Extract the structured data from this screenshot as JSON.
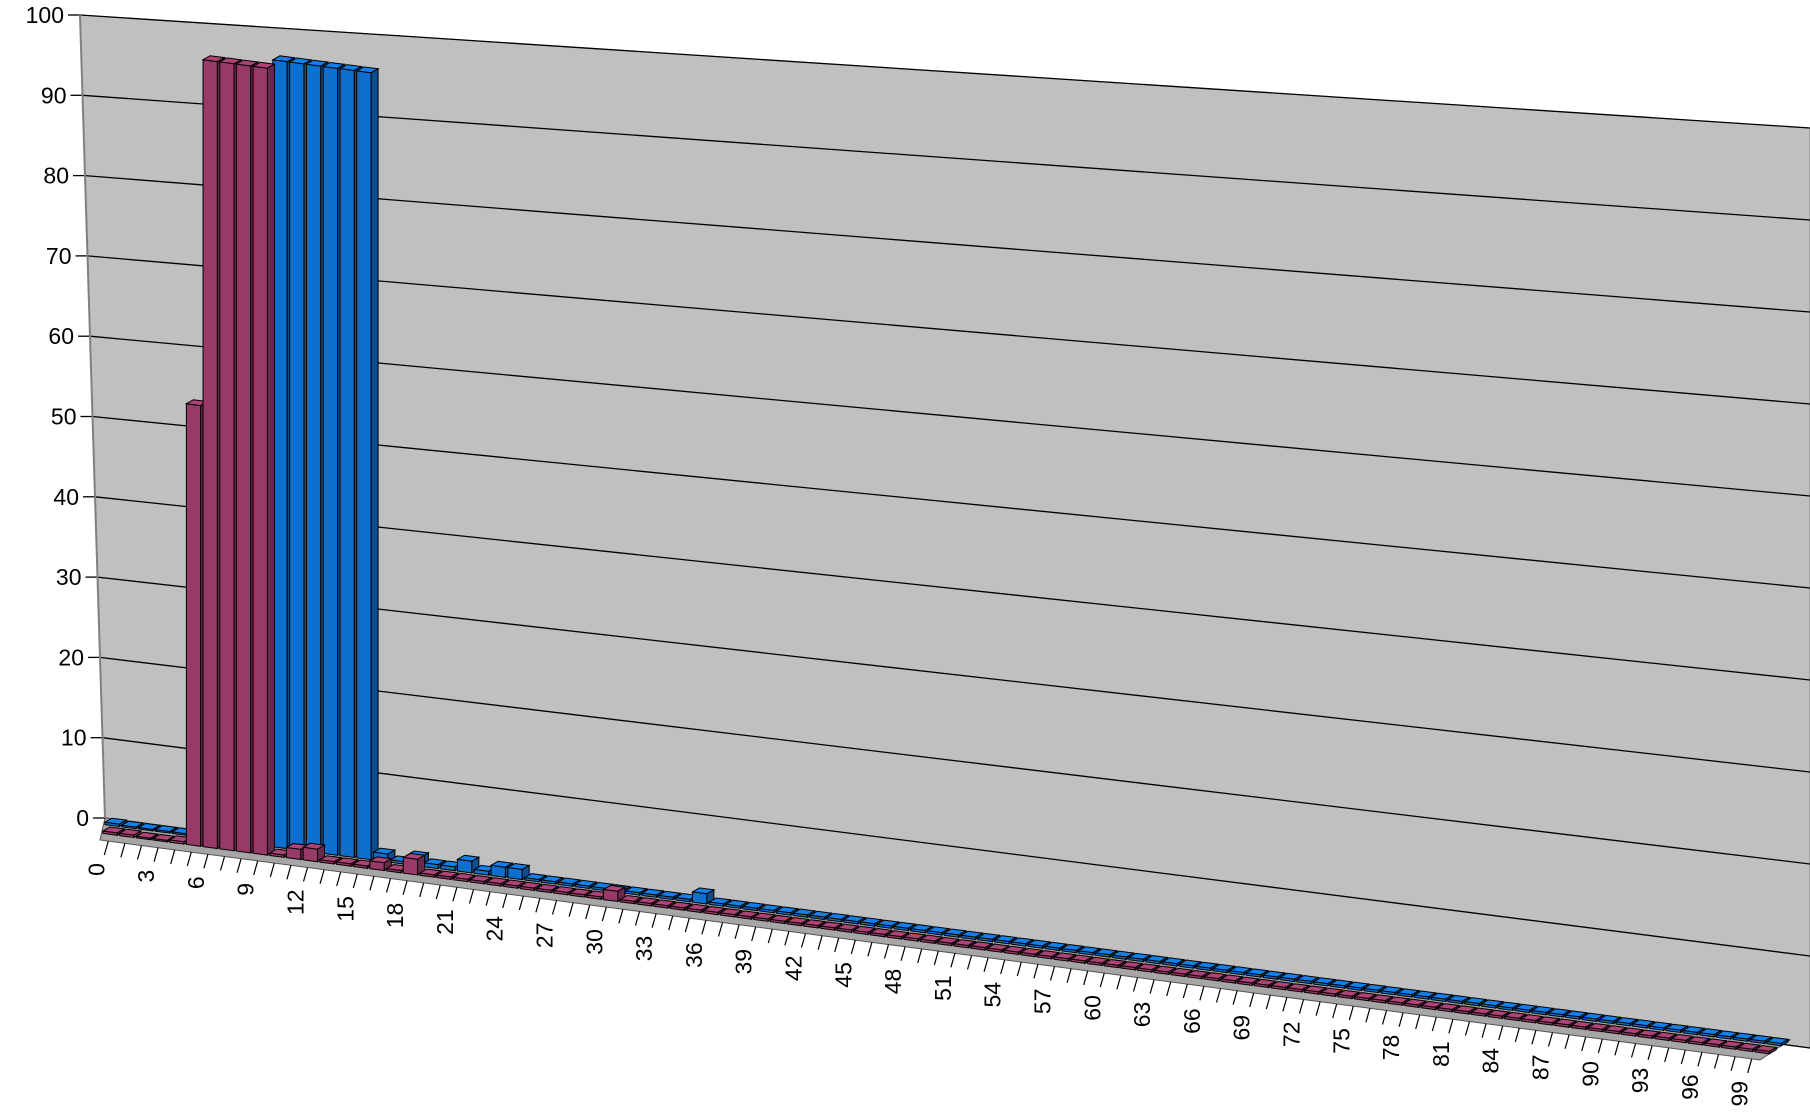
{
  "chart_data": {
    "type": "bar",
    "title": "",
    "xlabel": "",
    "ylabel": "",
    "ylim": [
      0,
      100
    ],
    "y_ticks": [
      "0",
      "10",
      "20",
      "30",
      "40",
      "50",
      "60",
      "70",
      "80",
      "90",
      "100"
    ],
    "x_ticks": [
      "0",
      "3",
      "6",
      "9",
      "12",
      "15",
      "18",
      "21",
      "24",
      "27",
      "30",
      "33",
      "36",
      "39",
      "42",
      "45",
      "48",
      "51",
      "54",
      "57",
      "60",
      "63",
      "66",
      "69",
      "72",
      "75",
      "78",
      "81",
      "84",
      "87",
      "90",
      "93",
      "96",
      "99"
    ],
    "x_range": [
      0,
      99
    ],
    "grid": true,
    "legend": "none",
    "style": "3d-clustered-column",
    "colors": {
      "wall": "#c0c0c0",
      "floor": "#a6a6a6",
      "series_a": "#983a68",
      "series_b": "#0f6fce",
      "grid": "#000000"
    },
    "series": [
      {
        "color": "#983a68",
        "points": [
          [
            0,
            0.3
          ],
          [
            1,
            0.3
          ],
          [
            2,
            0.2
          ],
          [
            3,
            0.2
          ],
          [
            4,
            0.3
          ],
          [
            5,
            56
          ],
          [
            6,
            100
          ],
          [
            7,
            100
          ],
          [
            8,
            100
          ],
          [
            9,
            100
          ],
          [
            10,
            0.3
          ],
          [
            11,
            1.3
          ],
          [
            12,
            1.6
          ],
          [
            13,
            0.3
          ],
          [
            14,
            0.3
          ],
          [
            15,
            0.3
          ],
          [
            16,
            1
          ],
          [
            17,
            0.3
          ],
          [
            18,
            2
          ],
          [
            19,
            0.3
          ],
          [
            20,
            0.3
          ],
          [
            21,
            0.3
          ],
          [
            22,
            0.3
          ],
          [
            23,
            0.3
          ],
          [
            24,
            0.3
          ],
          [
            25,
            0.3
          ],
          [
            26,
            0.3
          ],
          [
            27,
            0.3
          ],
          [
            28,
            0.3
          ],
          [
            29,
            0.3
          ],
          [
            30,
            1.3
          ],
          [
            31,
            0.3
          ],
          [
            32,
            0.3
          ],
          [
            33,
            0.3
          ],
          [
            34,
            0.3
          ],
          [
            35,
            0.3
          ],
          [
            36,
            0.3
          ],
          [
            37,
            0.3
          ],
          [
            38,
            0.3
          ],
          [
            39,
            0.3
          ],
          [
            40,
            0.3
          ],
          [
            41,
            0.3
          ],
          [
            42,
            0.3
          ],
          [
            43,
            0.3
          ],
          [
            44,
            0.3
          ],
          [
            45,
            0.3
          ],
          [
            46,
            0.3
          ],
          [
            47,
            0.3
          ],
          [
            48,
            0.3
          ],
          [
            49,
            0.3
          ],
          [
            50,
            0.3
          ],
          [
            51,
            0.3
          ],
          [
            52,
            0.3
          ],
          [
            53,
            0.3
          ],
          [
            54,
            0.3
          ],
          [
            55,
            0.3
          ],
          [
            56,
            0.3
          ],
          [
            57,
            0.3
          ],
          [
            58,
            0.3
          ],
          [
            59,
            0.3
          ],
          [
            60,
            0.3
          ],
          [
            61,
            0.3
          ],
          [
            62,
            0.3
          ],
          [
            63,
            0.3
          ],
          [
            64,
            0.3
          ],
          [
            65,
            0.3
          ],
          [
            66,
            0.3
          ],
          [
            67,
            0.3
          ],
          [
            68,
            0.3
          ],
          [
            69,
            0.3
          ],
          [
            70,
            0.3
          ],
          [
            71,
            0.3
          ],
          [
            72,
            0.3
          ],
          [
            73,
            0.3
          ],
          [
            74,
            0.3
          ],
          [
            75,
            0.3
          ],
          [
            76,
            0.3
          ],
          [
            77,
            0.3
          ],
          [
            78,
            0.3
          ],
          [
            79,
            0.3
          ],
          [
            80,
            0.3
          ],
          [
            81,
            0.3
          ],
          [
            82,
            0.3
          ],
          [
            83,
            0.3
          ],
          [
            84,
            0.3
          ],
          [
            85,
            0.3
          ],
          [
            86,
            0.3
          ],
          [
            87,
            0.3
          ],
          [
            88,
            0.3
          ],
          [
            89,
            0.3
          ],
          [
            90,
            0.3
          ],
          [
            91,
            0.3
          ],
          [
            92,
            0.3
          ],
          [
            93,
            0.3
          ],
          [
            94,
            0.3
          ],
          [
            95,
            0.3
          ],
          [
            96,
            0.3
          ],
          [
            97,
            0.3
          ],
          [
            98,
            0.3
          ],
          [
            99,
            0.3
          ]
        ]
      },
      {
        "color": "#0f6fce",
        "points": [
          [
            0,
            0.3
          ],
          [
            1,
            0.2
          ],
          [
            2,
            0.2
          ],
          [
            3,
            0.2
          ],
          [
            4,
            0.2
          ],
          [
            5,
            0.2
          ],
          [
            6,
            0.2
          ],
          [
            7,
            0.2
          ],
          [
            8,
            0.2
          ],
          [
            9,
            0.2
          ],
          [
            10,
            100
          ],
          [
            11,
            100
          ],
          [
            12,
            100
          ],
          [
            13,
            100
          ],
          [
            14,
            100
          ],
          [
            15,
            100
          ],
          [
            16,
            1
          ],
          [
            17,
            0.3
          ],
          [
            18,
            1.2
          ],
          [
            19,
            0.5
          ],
          [
            20,
            0.5
          ],
          [
            21,
            1.5
          ],
          [
            22,
            0.5
          ],
          [
            23,
            1.3
          ],
          [
            24,
            1.3
          ],
          [
            25,
            0.3
          ],
          [
            26,
            0.3
          ],
          [
            27,
            0.3
          ],
          [
            28,
            0.3
          ],
          [
            29,
            0.3
          ],
          [
            30,
            0.3
          ],
          [
            31,
            0.3
          ],
          [
            32,
            0.3
          ],
          [
            33,
            0.3
          ],
          [
            34,
            0.3
          ],
          [
            35,
            1.3
          ],
          [
            36,
            0.3
          ],
          [
            37,
            0.3
          ],
          [
            38,
            0.3
          ],
          [
            39,
            0.3
          ],
          [
            40,
            0.3
          ],
          [
            41,
            0.3
          ],
          [
            42,
            0.3
          ],
          [
            43,
            0.3
          ],
          [
            44,
            0.3
          ],
          [
            45,
            0.3
          ],
          [
            46,
            0.3
          ],
          [
            47,
            0.3
          ],
          [
            48,
            0.3
          ],
          [
            49,
            0.3
          ],
          [
            50,
            0.3
          ],
          [
            51,
            0.3
          ],
          [
            52,
            0.3
          ],
          [
            53,
            0.3
          ],
          [
            54,
            0.3
          ],
          [
            55,
            0.3
          ],
          [
            56,
            0.3
          ],
          [
            57,
            0.3
          ],
          [
            58,
            0.3
          ],
          [
            59,
            0.3
          ],
          [
            60,
            0.3
          ],
          [
            61,
            0.3
          ],
          [
            62,
            0.3
          ],
          [
            63,
            0.3
          ],
          [
            64,
            0.3
          ],
          [
            65,
            0.3
          ],
          [
            66,
            0.3
          ],
          [
            67,
            0.3
          ],
          [
            68,
            0.3
          ],
          [
            69,
            0.3
          ],
          [
            70,
            0.3
          ],
          [
            71,
            0.3
          ],
          [
            72,
            0.3
          ],
          [
            73,
            0.3
          ],
          [
            74,
            0.3
          ],
          [
            75,
            0.3
          ],
          [
            76,
            0.3
          ],
          [
            77,
            0.3
          ],
          [
            78,
            0.3
          ],
          [
            79,
            0.3
          ],
          [
            80,
            0.3
          ],
          [
            81,
            0.3
          ],
          [
            82,
            0.3
          ],
          [
            83,
            0.3
          ],
          [
            84,
            0.3
          ],
          [
            85,
            0.3
          ],
          [
            86,
            0.3
          ],
          [
            87,
            0.3
          ],
          [
            88,
            0.3
          ],
          [
            89,
            0.3
          ],
          [
            90,
            0.3
          ],
          [
            91,
            0.3
          ],
          [
            92,
            0.3
          ],
          [
            93,
            0.3
          ],
          [
            94,
            0.3
          ],
          [
            95,
            0.3
          ],
          [
            96,
            0.3
          ],
          [
            97,
            0.3
          ],
          [
            98,
            0.3
          ],
          [
            99,
            0.3
          ]
        ]
      }
    ]
  }
}
